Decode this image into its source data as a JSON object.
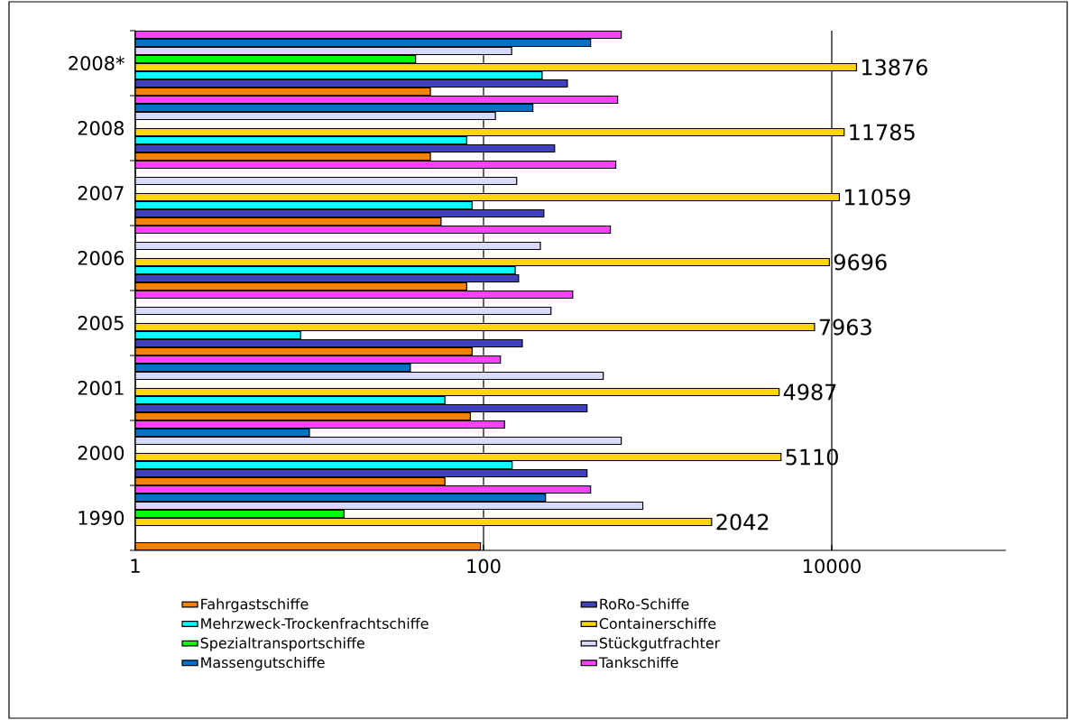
{
  "chart_data": {
    "type": "bar",
    "orientation": "horizontal",
    "log": "x",
    "grid": "x",
    "legend": "bottom",
    "categories": [
      "2008*",
      "2008",
      "2007",
      "2006",
      "2005",
      "2001",
      "2000",
      "1990"
    ],
    "xlim": [
      1,
      100000
    ],
    "xticks": [
      1,
      100,
      10000
    ],
    "series": [
      {
        "name": "Fahrgastschiffe",
        "color": "#ff8000",
        "values": [
          49.5,
          49.5,
          57,
          80,
          86,
          84,
          60,
          96
        ]
      },
      {
        "name": "RoRo-Schiffe",
        "color": "#4040c0",
        "values": [
          303,
          256,
          222,
          159,
          167,
          393,
          393,
          null
        ]
      },
      {
        "name": "Mehrzweck-Trockenfrachtschiffe",
        "color": "#00ffff",
        "values": [
          217,
          80,
          86,
          152,
          8.9,
          60,
          146,
          null
        ]
      },
      {
        "name": "Containerschiffe",
        "color": "#ffd700",
        "values": [
          13876,
          11785,
          11059,
          9696,
          7963,
          4987,
          5110,
          2042
        ],
        "value_labels": [
          "13876",
          "11785",
          "11059",
          "9696",
          "7963",
          "4987",
          "5110",
          "2042"
        ]
      },
      {
        "name": "Spezialtransportschiffe",
        "color": "#00ff00",
        "values": [
          40.7,
          null,
          null,
          null,
          null,
          null,
          null,
          15.8
        ]
      },
      {
        "name": "Stückgutfrachter",
        "color": "#d8d8f8",
        "values": [
          145,
          117,
          155,
          212,
          244,
          487,
          618,
          822
        ]
      },
      {
        "name": "Massengutschiffe",
        "color": "#0070d0",
        "values": [
          412,
          192,
          null,
          null,
          null,
          38,
          10,
          227
        ]
      },
      {
        "name": "Tankschiffe",
        "color": "#ff40ff",
        "values": [
          618,
          589,
          575,
          535,
          325,
          125,
          132,
          412
        ]
      }
    ]
  }
}
